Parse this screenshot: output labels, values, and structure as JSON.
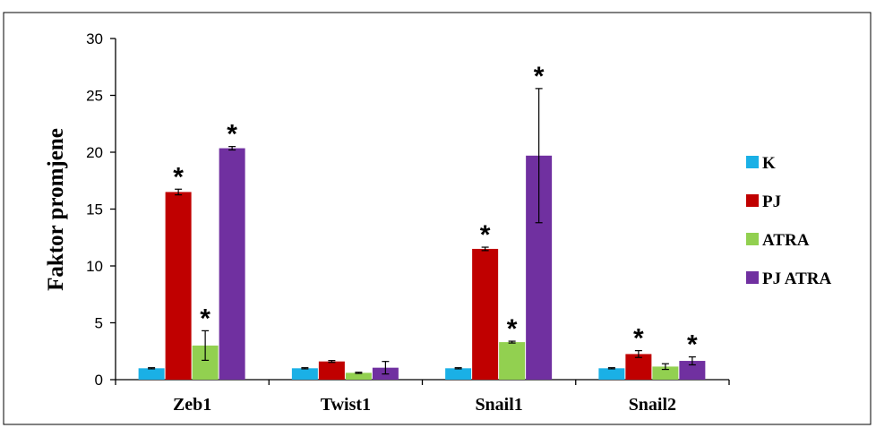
{
  "chart_data": {
    "type": "bar",
    "title": "",
    "xlabel": "",
    "ylabel": "Faktor promjene",
    "ylim": [
      0,
      30
    ],
    "yticks": [
      0,
      5,
      10,
      15,
      20,
      25,
      30
    ],
    "categories": [
      "Zeb1",
      "Twist1",
      "Snail1",
      "Snail2"
    ],
    "legend_position": "right",
    "grid": false,
    "series": [
      {
        "name": "K",
        "color": "#1ab0e6",
        "values": [
          1.0,
          1.0,
          1.0,
          1.0
        ],
        "errors": [
          0.05,
          0.05,
          0.05,
          0.05
        ],
        "significant": [
          false,
          false,
          false,
          false
        ]
      },
      {
        "name": "PJ",
        "color": "#c00000",
        "values": [
          16.5,
          1.6,
          11.5,
          2.25
        ],
        "errors": [
          0.25,
          0.08,
          0.15,
          0.3
        ],
        "significant": [
          true,
          false,
          true,
          true
        ]
      },
      {
        "name": "ATRA",
        "color": "#92d050",
        "values": [
          3.0,
          0.6,
          3.3,
          1.15
        ],
        "errors": [
          1.3,
          0.05,
          0.08,
          0.25
        ],
        "significant": [
          true,
          false,
          true,
          false
        ]
      },
      {
        "name": "PJ ATRA",
        "color": "#7030a0",
        "values": [
          20.35,
          1.05,
          19.7,
          1.65
        ],
        "errors": [
          0.15,
          0.55,
          5.9,
          0.35
        ],
        "significant": [
          true,
          false,
          true,
          true
        ]
      }
    ],
    "significance_marker": "*"
  }
}
